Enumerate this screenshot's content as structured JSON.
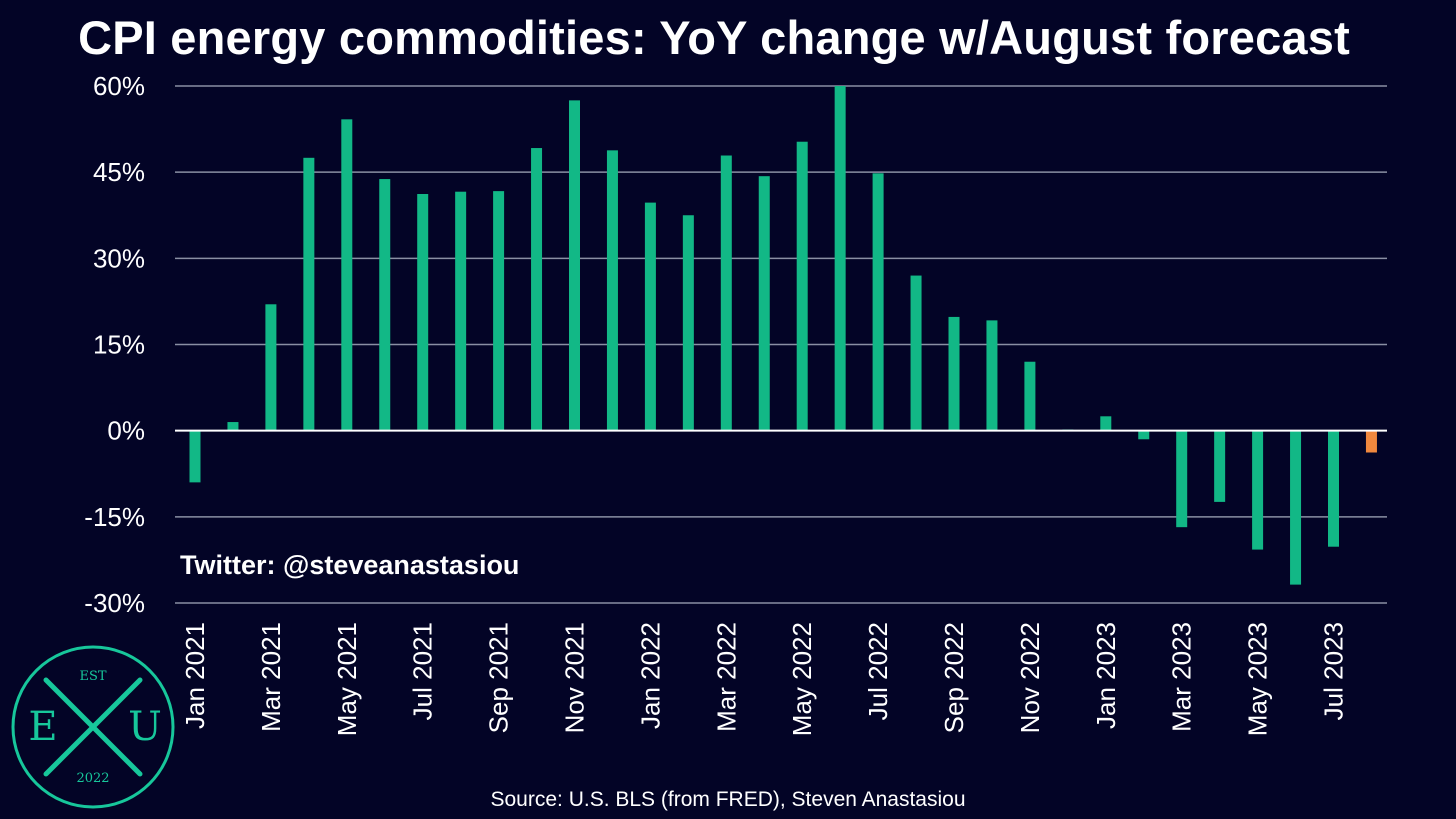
{
  "title": "CPI energy commodities: YoY change w/August forecast",
  "watermark": "Twitter: @steveanastasiou",
  "source": "Source: U.S. BLS (from FRED), Steven Anastasiou",
  "logo": {
    "est": "EST",
    "letters_left": "E",
    "letters_right": "U",
    "year": "2022"
  },
  "colors": {
    "background": "#030426",
    "actual": "#12b886",
    "forecast": "#f0883e",
    "grid": "#8a8fa3",
    "zero_line": "#ffffff",
    "logo": "#17c79b"
  },
  "chart_data": {
    "type": "bar",
    "title": "CPI energy commodities: YoY change w/August forecast",
    "ylabel": "",
    "xlabel": "",
    "ylim": [
      -30,
      60
    ],
    "yticks": [
      60,
      45,
      30,
      15,
      0,
      -15,
      -30
    ],
    "ytick_labels": [
      "60%",
      "45%",
      "30%",
      "15%",
      "0%",
      "-15%",
      "-30%"
    ],
    "grid": true,
    "x_tick_labels": [
      "Jan 2021",
      "Mar 2021",
      "May 2021",
      "Jul 2021",
      "Sep 2021",
      "Nov 2021",
      "Jan 2022",
      "Mar 2022",
      "May 2022",
      "Jul 2022",
      "Sep 2022",
      "Nov 2022",
      "Jan 2023",
      "Mar 2023",
      "May 2023",
      "Jul 2023"
    ],
    "categories": [
      "Jan 2021",
      "Feb 2021",
      "Mar 2021",
      "Apr 2021",
      "May 2021",
      "Jun 2021",
      "Jul 2021",
      "Aug 2021",
      "Sep 2021",
      "Oct 2021",
      "Nov 2021",
      "Dec 2021",
      "Jan 2022",
      "Feb 2022",
      "Mar 2022",
      "Apr 2022",
      "May 2022",
      "Jun 2022",
      "Jul 2022",
      "Aug 2022",
      "Sep 2022",
      "Oct 2022",
      "Nov 2022",
      "Dec 2022",
      "Jan 2023",
      "Feb 2023",
      "Mar 2023",
      "Apr 2023",
      "May 2023",
      "Jun 2023",
      "Jul 2023",
      "Aug 2023"
    ],
    "values": [
      -9.0,
      1.5,
      22.0,
      47.5,
      54.2,
      43.8,
      41.2,
      41.6,
      41.7,
      49.2,
      57.5,
      48.8,
      39.7,
      37.5,
      47.9,
      44.3,
      50.3,
      60.0,
      44.8,
      27.0,
      19.8,
      19.2,
      12.0,
      0.2,
      2.5,
      -1.5,
      -16.8,
      -12.4,
      -20.7,
      -26.8,
      -20.2,
      -3.8
    ],
    "forecast_from_index": 31
  }
}
